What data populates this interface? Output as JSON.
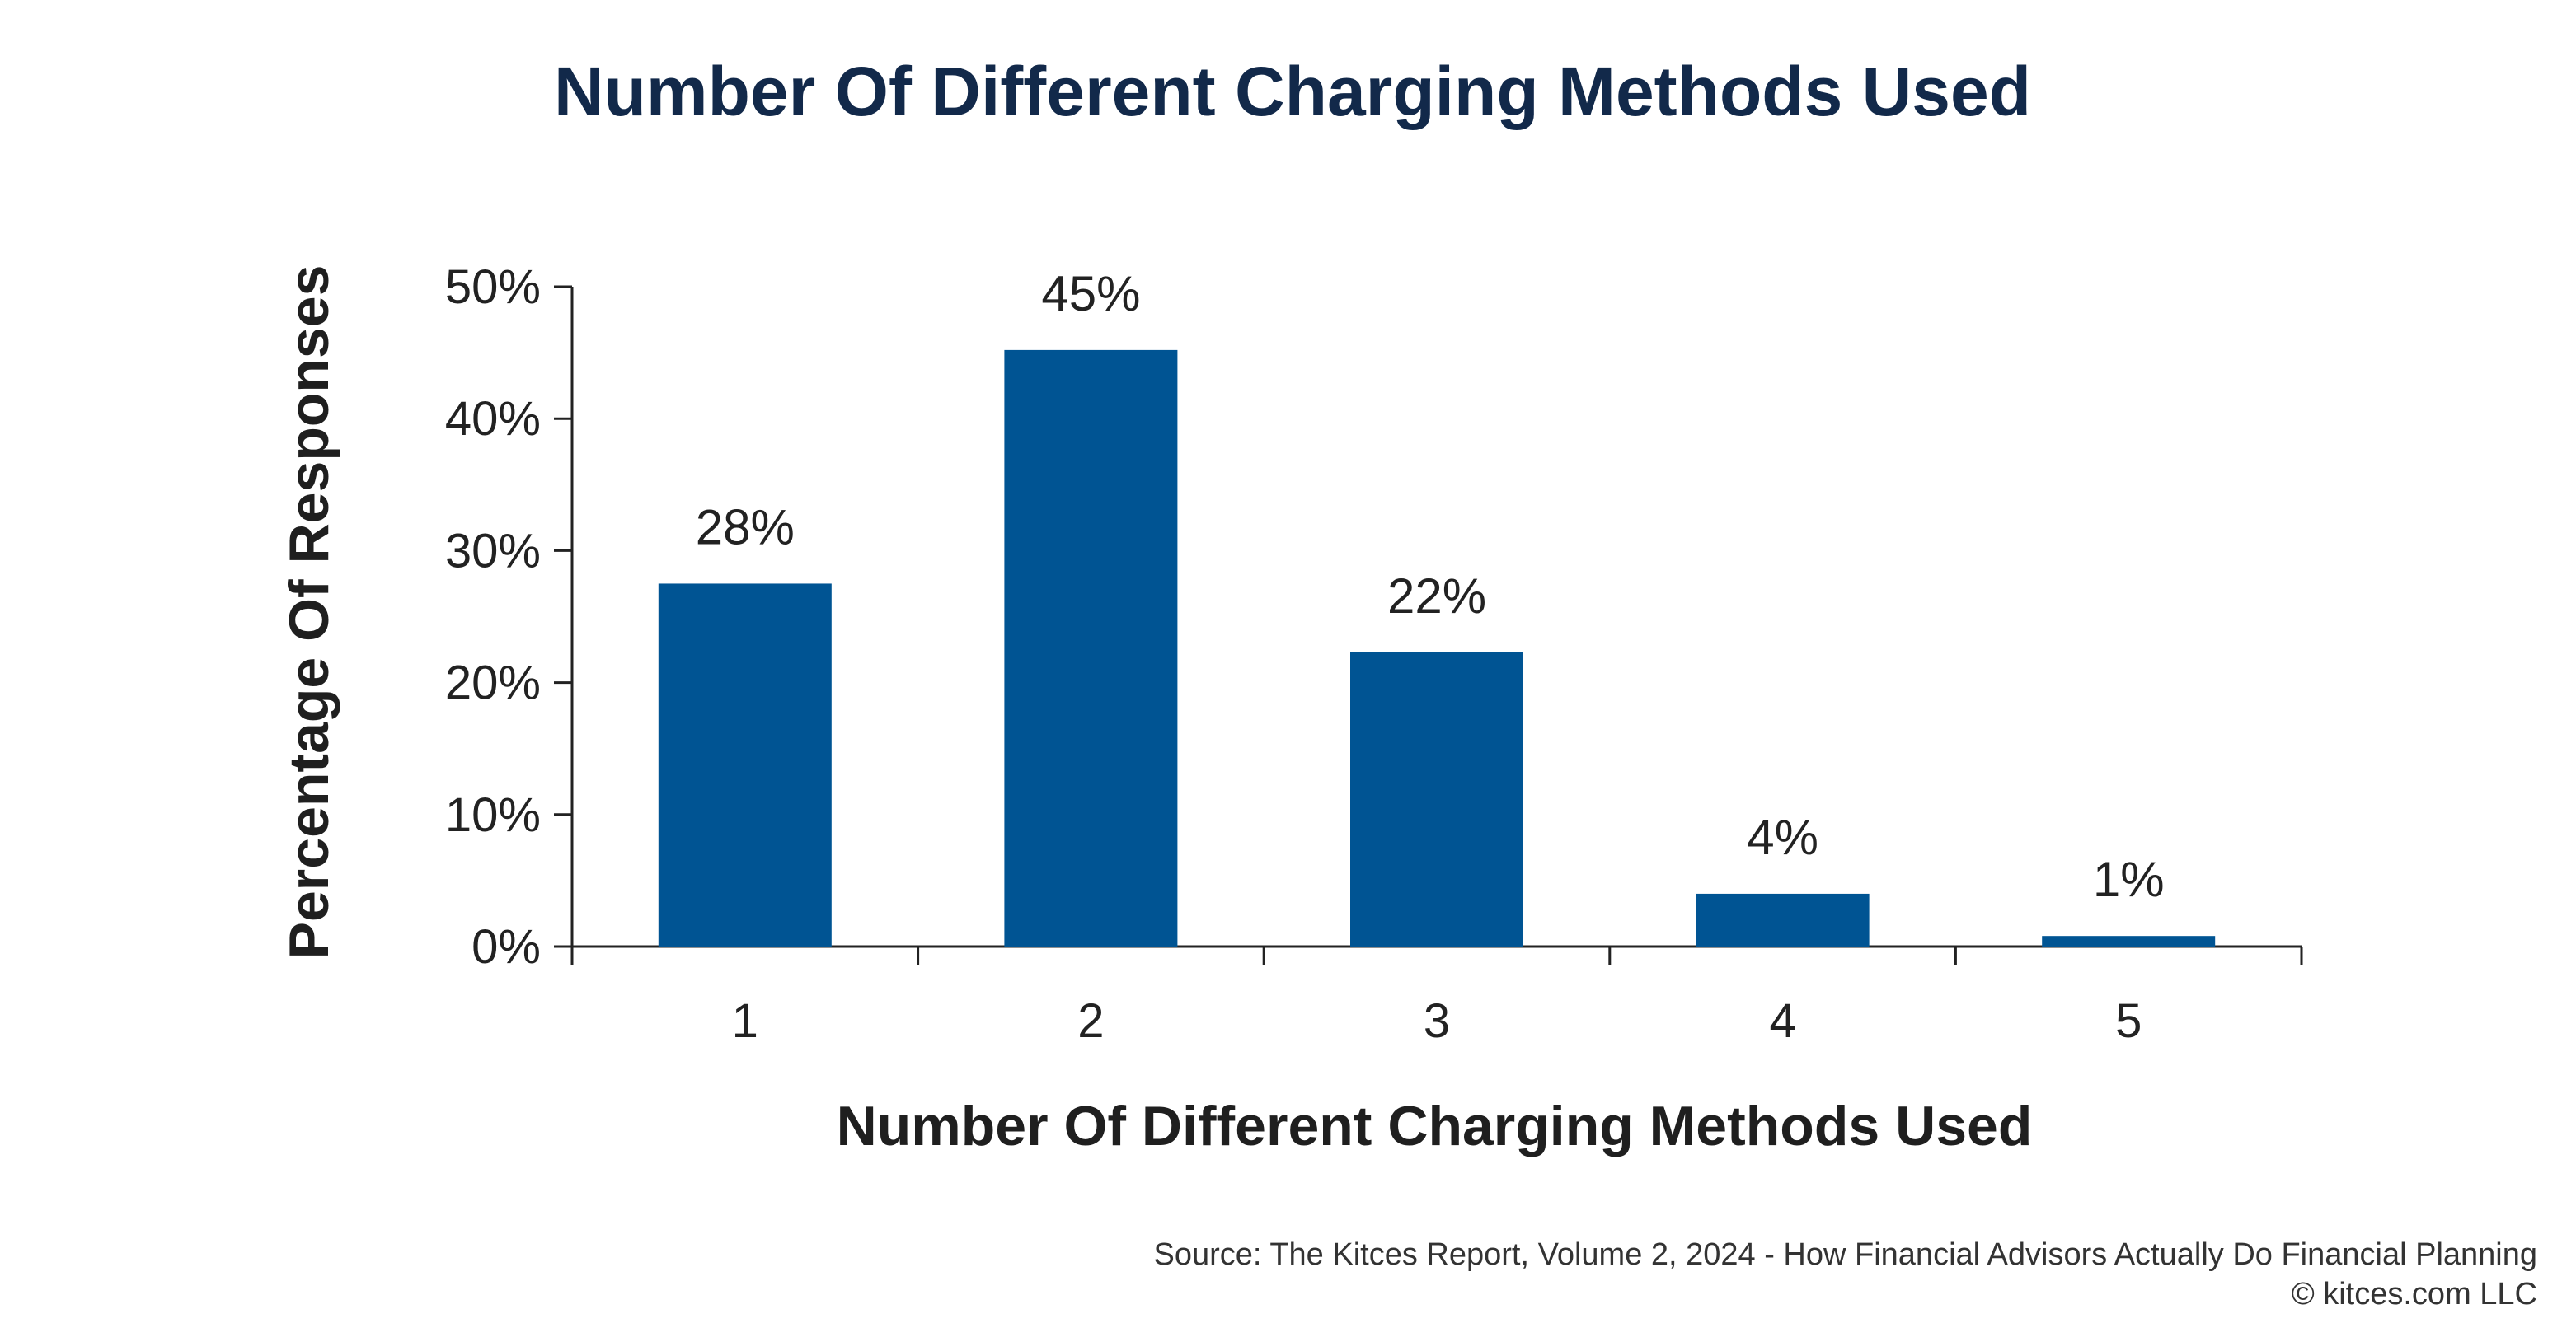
{
  "colors": {
    "title": "#12294a",
    "bar": "#005493",
    "axis": "#222222",
    "background": "#ffffff"
  },
  "chart_data": {
    "type": "bar",
    "title": "Number Of Different Charging Methods Used",
    "xlabel": "Number Of Different Charging Methods Used",
    "ylabel": "Percentage Of Responses",
    "categories": [
      "1",
      "2",
      "3",
      "4",
      "5"
    ],
    "values": [
      27.5,
      45.2,
      22.3,
      4.0,
      0.8
    ],
    "data_labels": [
      "28%",
      "45%",
      "22%",
      "4%",
      "1%"
    ],
    "ylim": [
      0,
      50
    ],
    "yticks": [
      0,
      10,
      20,
      30,
      40,
      50
    ],
    "ytick_labels": [
      "0%",
      "10%",
      "20%",
      "30%",
      "40%",
      "50%"
    ],
    "grid": false,
    "legend": "none"
  },
  "footer": {
    "source": "Source: The Kitces Report, Volume 2, 2024 - How Financial Advisors Actually Do Financial Planning",
    "copyright": "© kitces.com LLC"
  }
}
